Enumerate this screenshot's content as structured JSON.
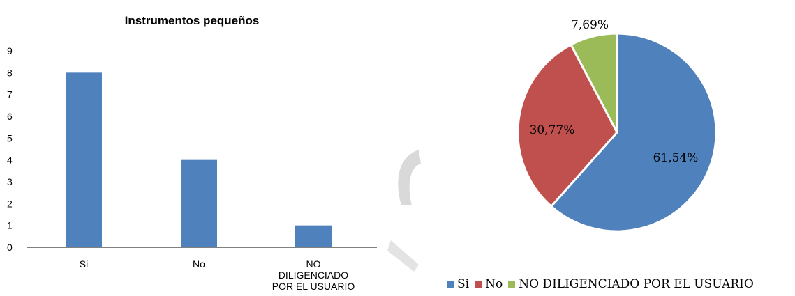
{
  "chart_data": [
    {
      "type": "bar",
      "title": "Instrumentos pequeños",
      "categories": [
        "Si",
        "No",
        "NO DILIGENCIADO POR EL USUARIO"
      ],
      "category_lines": [
        [
          "Si"
        ],
        [
          "No"
        ],
        [
          "NO",
          "DILIGENCIADO",
          "POR EL USUARIO"
        ]
      ],
      "values": [
        8,
        4,
        1
      ],
      "ylim": [
        0,
        9
      ],
      "yticks": [
        "0",
        "1",
        "2",
        "3",
        "4",
        "5",
        "6",
        "7",
        "8",
        "9"
      ],
      "xlabel": "",
      "ylabel": "",
      "grid": false,
      "color": "#4F81BD"
    },
    {
      "type": "pie",
      "categories": [
        "Si",
        "No",
        "NO DILIGENCIADO POR EL USUARIO"
      ],
      "values": [
        61.54,
        30.77,
        7.69
      ],
      "labels": [
        "61,54%",
        "30,77%",
        "7,69%"
      ],
      "colors": [
        "#4F81BD",
        "#C0504D",
        "#9BBB59"
      ],
      "legend_position": "bottom"
    }
  ]
}
